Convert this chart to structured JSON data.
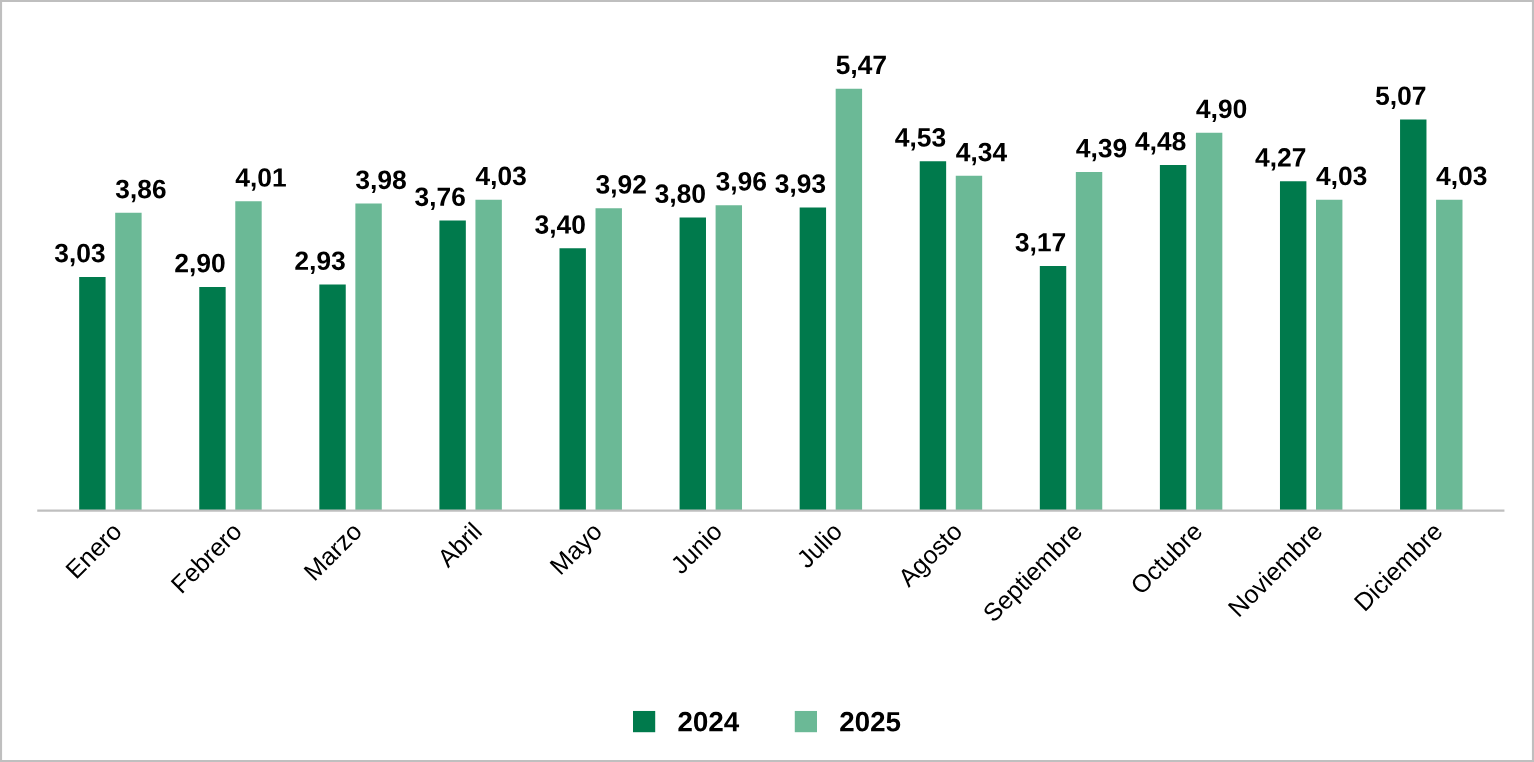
{
  "chart_data": {
    "type": "bar",
    "categories": [
      "Enero",
      "Febrero",
      "Marzo",
      "Abril",
      "Mayo",
      "Junio",
      "Julio",
      "Agosto",
      "Septiembre",
      "Octubre",
      "Noviembre",
      "Diciembre"
    ],
    "series": [
      {
        "name": "2024",
        "color": "#007a4c",
        "values": [
          3.03,
          2.9,
          2.93,
          3.76,
          3.4,
          3.8,
          3.93,
          4.53,
          3.17,
          4.48,
          4.27,
          5.07
        ],
        "value_labels": [
          "3,03",
          "2,90",
          "2,93",
          "3,76",
          "3,40",
          "3,80",
          "3,93",
          "4,53",
          "3,17",
          "4,48",
          "4,27",
          "5,07"
        ]
      },
      {
        "name": "2025",
        "color": "#6bb996",
        "values": [
          3.86,
          4.01,
          3.98,
          4.03,
          3.92,
          3.96,
          5.47,
          4.34,
          4.39,
          4.9,
          4.03,
          4.03
        ],
        "value_labels": [
          "3,86",
          "4,01",
          "3,98",
          "4,03",
          "3,92",
          "3,96",
          "5,47",
          "4,34",
          "4,39",
          "4,90",
          "4,03",
          "4,03"
        ]
      }
    ],
    "legend": "bottom",
    "grid": false
  }
}
